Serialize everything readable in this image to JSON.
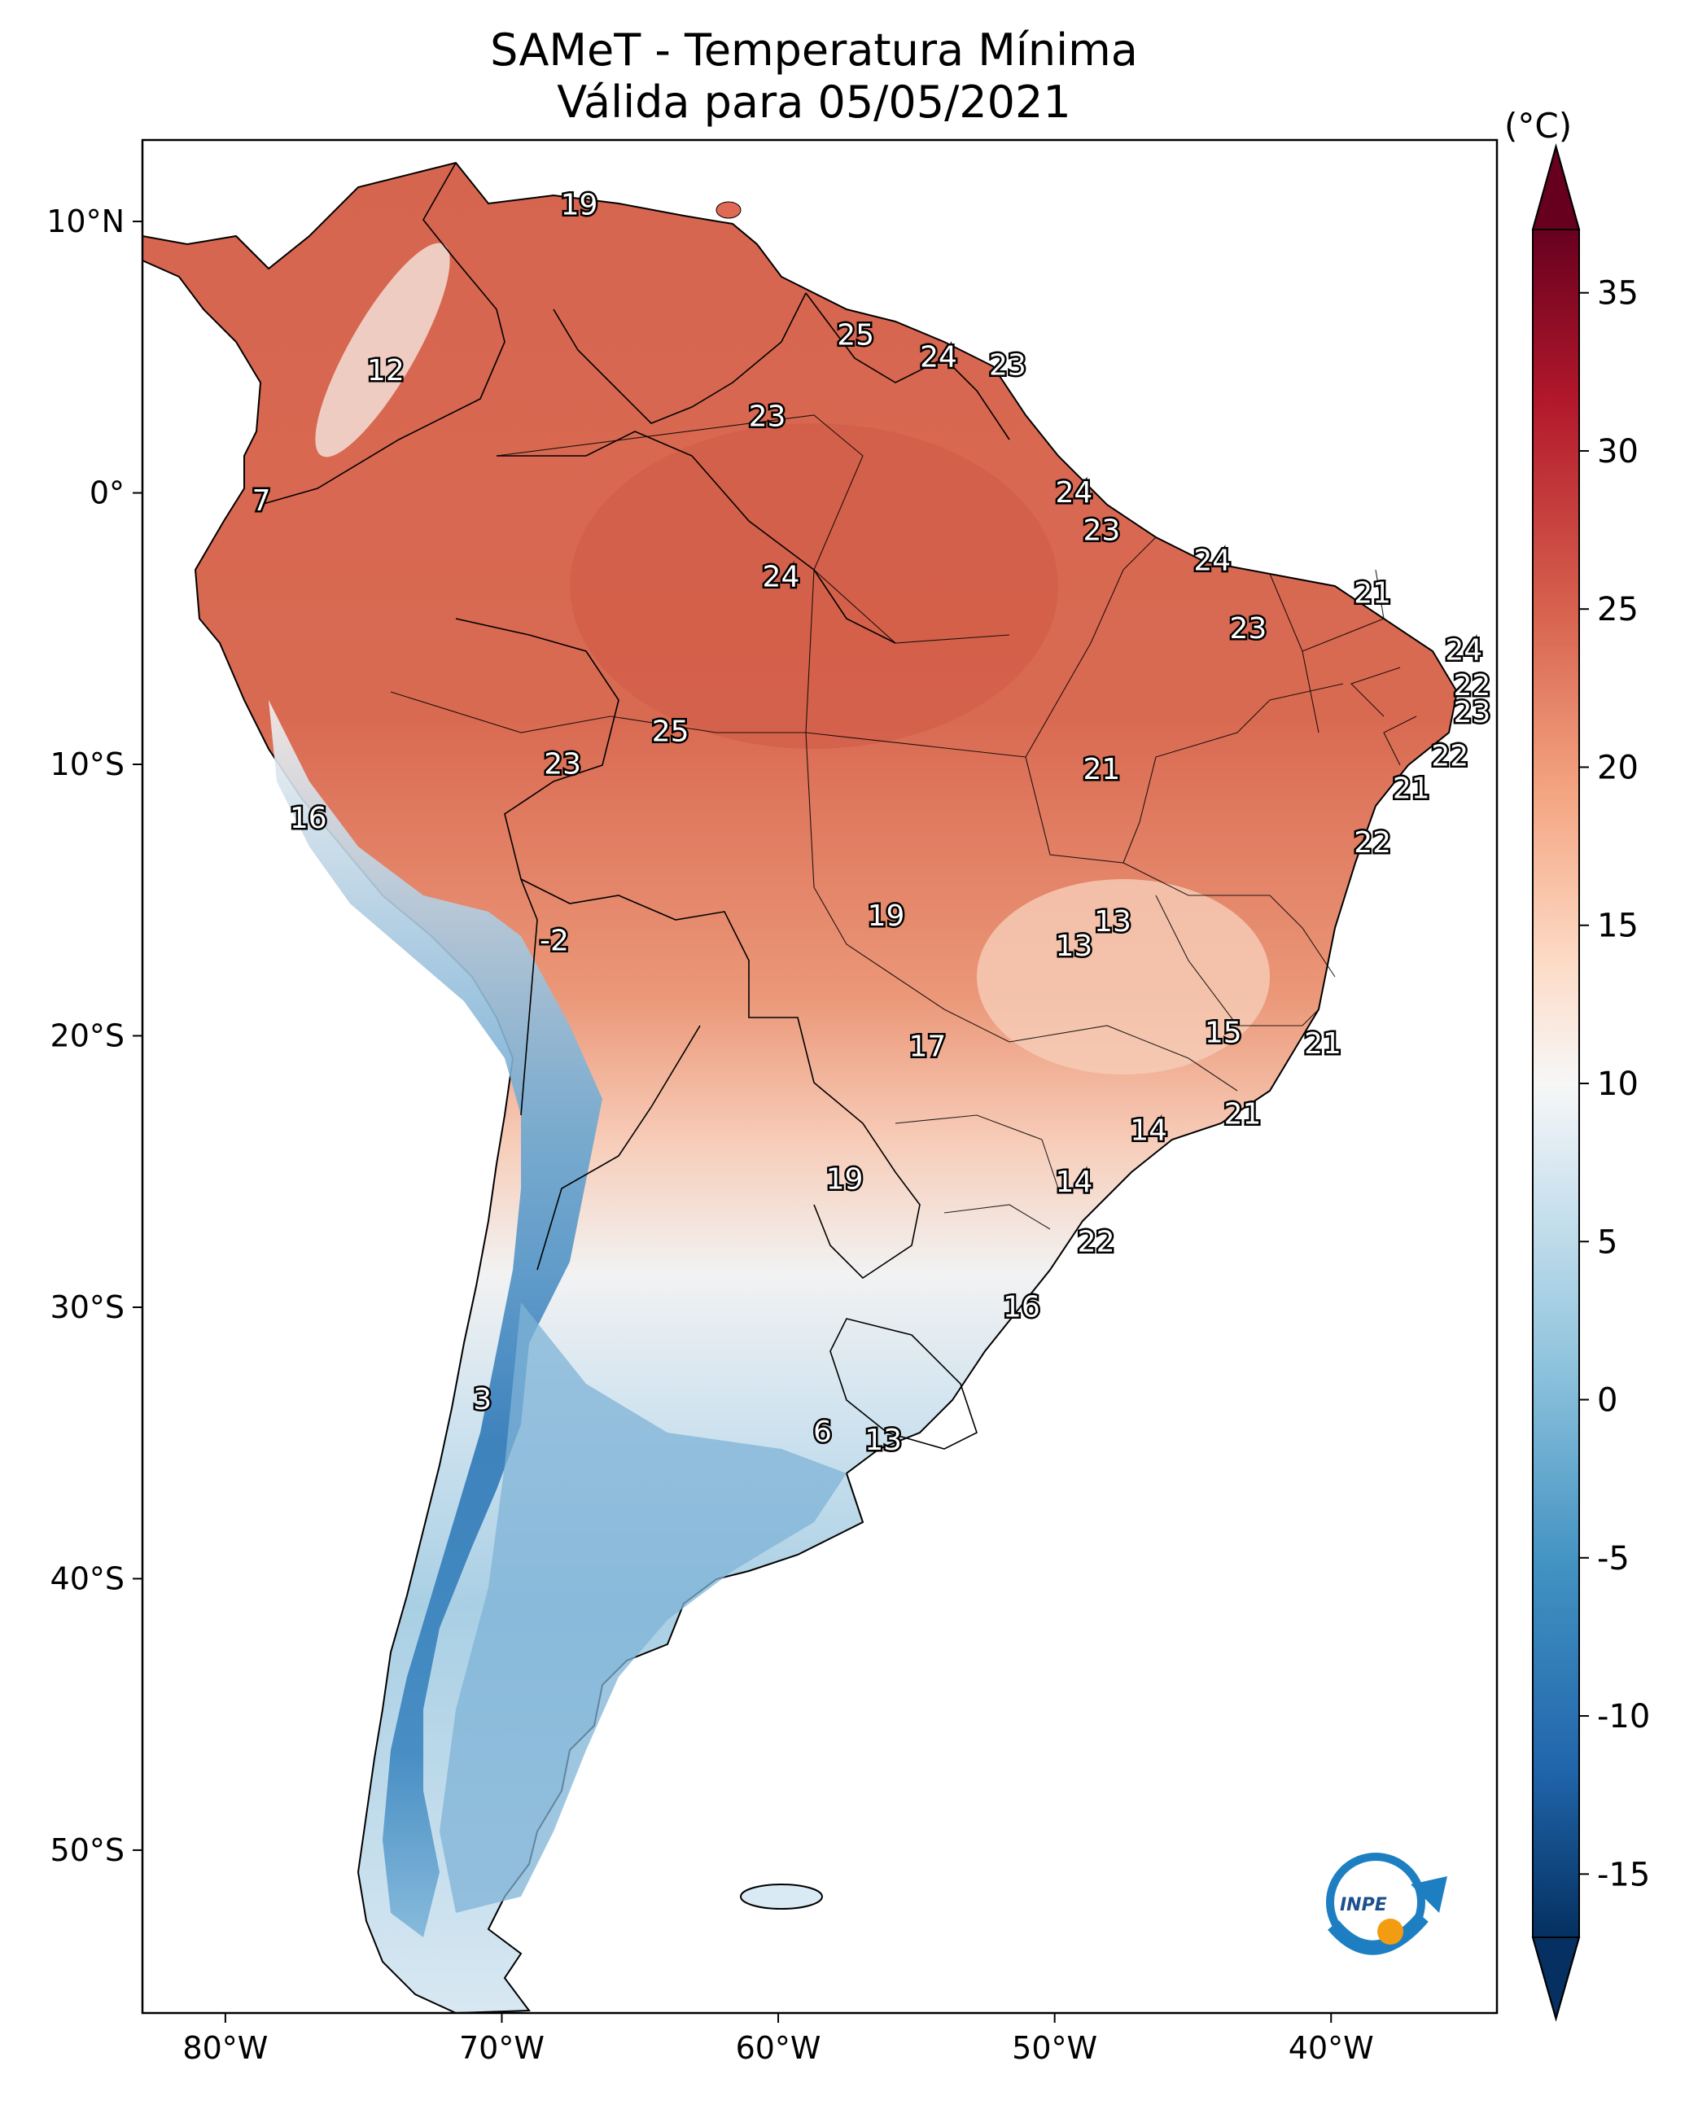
{
  "title": {
    "line1": "SAMeT - Temperatura Mínima",
    "line2": "Válida para 05/05/2021"
  },
  "lon_ticks": [
    "80°W",
    "70°W",
    "60°W",
    "50°W",
    "40°W"
  ],
  "lon_values": [
    -80,
    -70,
    -60,
    -50,
    -40
  ],
  "lat_ticks": [
    "10°N",
    "0°",
    "10°S",
    "20°S",
    "30°S",
    "40°S",
    "50°S"
  ],
  "lat_values": [
    10,
    0,
    -10,
    -20,
    -30,
    -40,
    -50
  ],
  "extent": {
    "lon": [
      -83,
      -34
    ],
    "lat": [
      -56,
      13
    ]
  },
  "colorbar": {
    "unit": "(°C)",
    "ticks": [
      "35",
      "30",
      "25",
      "20",
      "15",
      "10",
      "5",
      "0",
      "-5",
      "-10",
      "-15"
    ],
    "tick_values": [
      35,
      30,
      25,
      20,
      15,
      10,
      5,
      0,
      -5,
      -10,
      -15
    ],
    "range": [
      -17,
      37
    ]
  },
  "colors": {
    "hot": "#d6604d",
    "warm": "#f4a582",
    "mild": "#fddbc7",
    "neutral": "#f7f7f7",
    "cool": "#d1e5f0",
    "cold": "#92c5de",
    "colder": "#4393c3",
    "coldest": "#2166ac"
  },
  "stations": [
    {
      "value": "19",
      "lon": -67.2,
      "lat": 10.6
    },
    {
      "value": "25",
      "lon": -57.2,
      "lat": 5.8
    },
    {
      "value": "24",
      "lon": -54.2,
      "lat": 5.0
    },
    {
      "value": "23",
      "lon": -51.7,
      "lat": 4.7
    },
    {
      "value": "12",
      "lon": -74.2,
      "lat": 4.5
    },
    {
      "value": "23",
      "lon": -60.4,
      "lat": 2.8
    },
    {
      "value": "7",
      "lon": -78.7,
      "lat": -0.3
    },
    {
      "value": "24",
      "lon": -49.3,
      "lat": 0.0
    },
    {
      "value": "23",
      "lon": -48.3,
      "lat": -1.4
    },
    {
      "value": "24",
      "lon": -59.9,
      "lat": -3.1
    },
    {
      "value": "24",
      "lon": -44.3,
      "lat": -2.5
    },
    {
      "value": "21",
      "lon": -38.5,
      "lat": -3.7
    },
    {
      "value": "23",
      "lon": -43.0,
      "lat": -5.0
    },
    {
      "value": "24",
      "lon": -35.2,
      "lat": -5.8
    },
    {
      "value": "22",
      "lon": -34.9,
      "lat": -7.1
    },
    {
      "value": "23",
      "lon": -34.9,
      "lat": -8.1
    },
    {
      "value": "25",
      "lon": -63.9,
      "lat": -8.8
    },
    {
      "value": "23",
      "lon": -67.8,
      "lat": -10.0
    },
    {
      "value": "22",
      "lon": -35.7,
      "lat": -9.7
    },
    {
      "value": "21",
      "lon": -48.3,
      "lat": -10.2
    },
    {
      "value": "21",
      "lon": -37.1,
      "lat": -10.9
    },
    {
      "value": "16",
      "lon": -77.0,
      "lat": -12.0
    },
    {
      "value": "22",
      "lon": -38.5,
      "lat": -12.9
    },
    {
      "value": "13",
      "lon": -47.9,
      "lat": -15.8
    },
    {
      "value": "19",
      "lon": -56.1,
      "lat": -15.6
    },
    {
      "value": "-2",
      "lon": -68.1,
      "lat": -16.5
    },
    {
      "value": "13",
      "lon": -49.3,
      "lat": -16.7
    },
    {
      "value": "15",
      "lon": -43.9,
      "lat": -19.9
    },
    {
      "value": "17",
      "lon": -54.6,
      "lat": -20.4
    },
    {
      "value": "21",
      "lon": -40.3,
      "lat": -20.3
    },
    {
      "value": "21",
      "lon": -43.2,
      "lat": -22.9
    },
    {
      "value": "14",
      "lon": -46.6,
      "lat": -23.5
    },
    {
      "value": "19",
      "lon": -57.6,
      "lat": -25.3
    },
    {
      "value": "14",
      "lon": -49.3,
      "lat": -25.4
    },
    {
      "value": "22",
      "lon": -48.5,
      "lat": -27.6
    },
    {
      "value": "16",
      "lon": -51.2,
      "lat": -30.0
    },
    {
      "value": "3",
      "lon": -70.7,
      "lat": -33.4
    },
    {
      "value": "6",
      "lon": -58.4,
      "lat": -34.6
    },
    {
      "value": "13",
      "lon": -56.2,
      "lat": -34.9
    }
  ]
}
